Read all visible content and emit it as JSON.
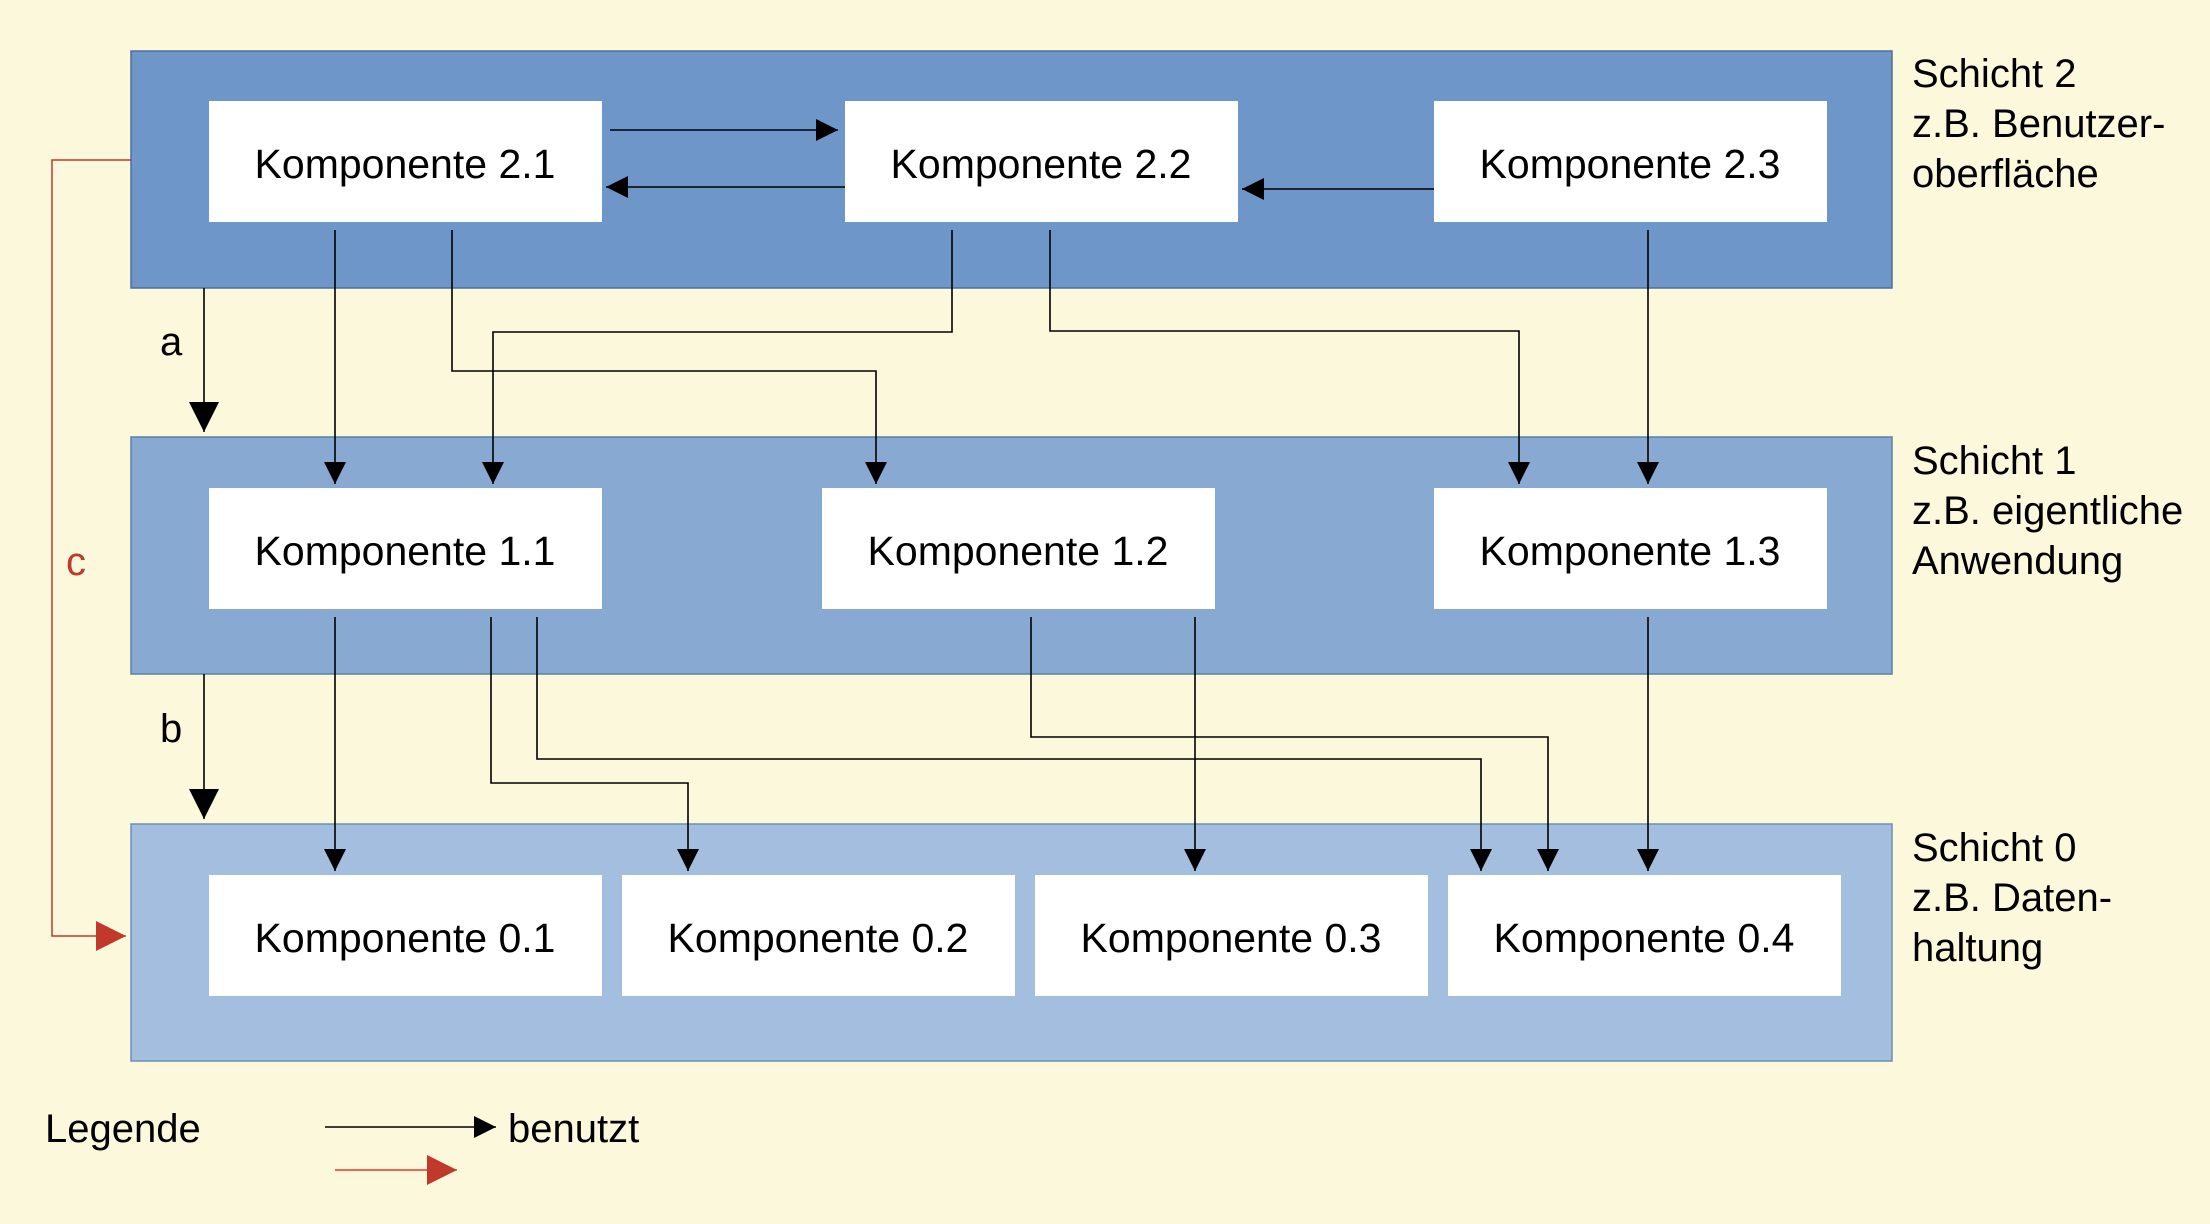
{
  "layers": [
    {
      "id": "L2",
      "title": "Schicht 2",
      "desc": [
        "z.B. Benutzer-",
        "oberfläche"
      ],
      "color": "#6e96c8"
    },
    {
      "id": "L1",
      "title": "Schicht 1",
      "desc": [
        "z.B. eigentliche",
        "Anwendung"
      ],
      "color": "#88aad2"
    },
    {
      "id": "L0",
      "title": "Schicht 0",
      "desc": [
        "z.B. Daten-",
        "haltung"
      ],
      "color": "#a4bedf"
    }
  ],
  "components": {
    "c21": "Komponente 2.1",
    "c22": "Komponente 2.2",
    "c23": "Komponente 2.3",
    "c11": "Komponente 1.1",
    "c12": "Komponente 1.2",
    "c13": "Komponente 1.3",
    "c01": "Komponente 0.1",
    "c02": "Komponente 0.2",
    "c03": "Komponente 0.3",
    "c04": "Komponente 0.4"
  },
  "edge_labels": {
    "a": "a",
    "b": "b",
    "c": "c"
  },
  "legend": {
    "title": "Legende",
    "uses_label": "benutzt"
  },
  "colors": {
    "background": "#fcf8dc",
    "arrow": "#000000",
    "red_arrow": "#c0392b",
    "legend_red": "#e8392b"
  }
}
